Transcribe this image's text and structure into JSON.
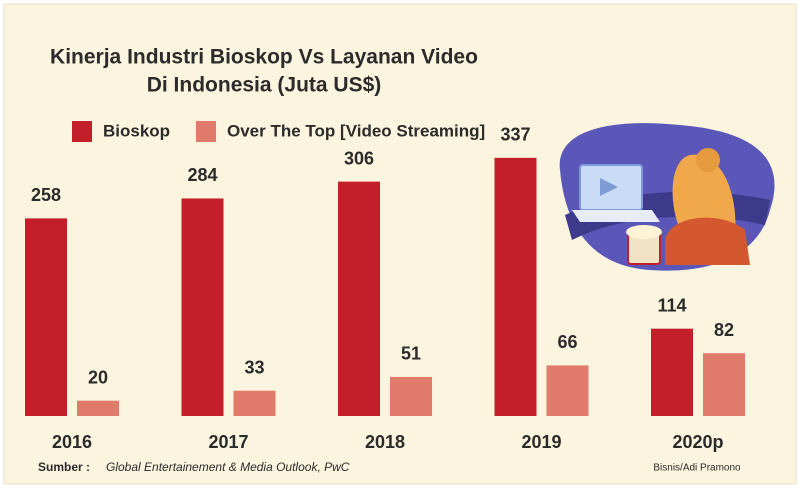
{
  "chart_data": {
    "type": "bar",
    "title": [
      "Kinerja Industri Bioskop Vs Layanan Video",
      "Di Indonesia (Juta US$)"
    ],
    "categories": [
      "2016",
      "2017",
      "2018",
      "2019",
      "2020p"
    ],
    "series": [
      {
        "name": "Bioskop",
        "color": "#c21f2a",
        "values": [
          258,
          284,
          306,
          337,
          114
        ]
      },
      {
        "name": "Over The Top [Video Streaming]",
        "color": "#e07b6b",
        "values": [
          20,
          33,
          51,
          66,
          82
        ]
      }
    ],
    "source": {
      "label": "Sumber :",
      "text": "Global Entertainement & Media Outlook, PwC"
    },
    "credit": "Bisnis/Adi Pramono"
  }
}
